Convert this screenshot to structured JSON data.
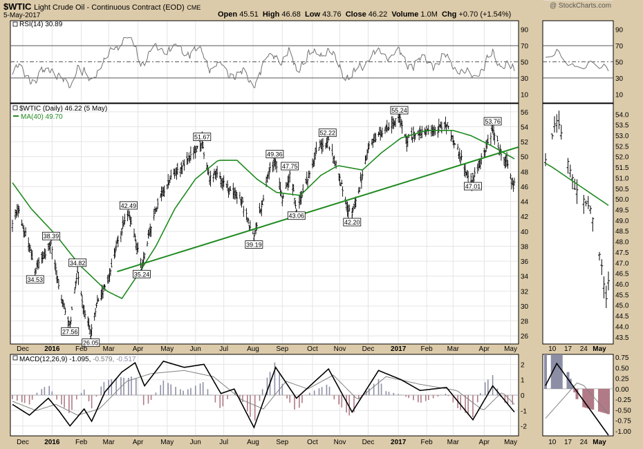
{
  "header": {
    "symbol": "$WTIC",
    "name": "Light Crude Oil - Continuous Contract (EOD)",
    "exchange": "CME",
    "date": "5-May-2017",
    "watermark": "@ StockCharts.com",
    "open_label": "Open",
    "open": "45.51",
    "high_label": "High",
    "high": "46.68",
    "low_label": "Low",
    "low": "43.76",
    "close_label": "Close",
    "close": "46.22",
    "volume_label": "Volume",
    "volume": "1.0M",
    "chg_label": "Chg",
    "chg": "+0.70 (+1.54%)"
  },
  "legends": {
    "rsi": "RSI(14) 30.89",
    "price": "$WTIC (Daily) 46.22 (5 May)",
    "ma": "MA(40) 49.70",
    "macd_a": "MACD(12,26,9) -1.095,",
    "macd_b": "-0.579,",
    "macd_c": "-0.517"
  },
  "colors": {
    "background": "#dccbaa",
    "panel": "#ffffff",
    "price_bars": "#000000",
    "ma_line": "#1f8a1f",
    "trendline": "#1f8a1f",
    "rsi_line": "#707070",
    "macd_line": "#000000",
    "signal_line": "#808080",
    "hist_pos": "#8c8ea6",
    "hist_neg": "#b07a86"
  },
  "chart_data": [
    {
      "type": "line",
      "panel": "rsi",
      "ylim": [
        0,
        100
      ],
      "yticks": [
        10,
        30,
        50,
        70,
        90
      ],
      "reference_lines": [
        30,
        50,
        70
      ],
      "current": 30.89,
      "x": [
        "Dec 2015",
        "Jan 2016",
        "Feb 2016",
        "Mar 2016",
        "Apr 2016",
        "May 2016",
        "Jun 2016",
        "Jul 2016",
        "Aug 2016",
        "Sep 2016",
        "Oct 2016",
        "Nov 2016",
        "Dec 2016",
        "Jan 2017",
        "Feb 2017",
        "Mar 2017",
        "Apr 2017",
        "May 2017"
      ],
      "series": [
        {
          "values": [
            45,
            40,
            35,
            48,
            52,
            60,
            65,
            50,
            35,
            55,
            60,
            42,
            62,
            58,
            55,
            40,
            62,
            31
          ]
        }
      ]
    },
    {
      "type": "line",
      "panel": "price",
      "title": "$WTIC (Daily) 46.22 (5 May)",
      "ylim": [
        25,
        57
      ],
      "yticks": [
        26,
        28,
        30,
        32,
        34,
        36,
        38,
        40,
        42,
        44,
        46,
        48,
        50,
        52,
        54,
        56
      ],
      "xticks": [
        "Dec",
        "2016",
        "Feb",
        "Mar",
        "Apr",
        "May",
        "Jun",
        "Jul",
        "Aug",
        "Sep",
        "Oct",
        "Nov",
        "Dec",
        "2017",
        "Feb",
        "Mar",
        "Apr",
        "May"
      ],
      "series": [
        {
          "name": "$WTIC",
          "kind": "ohlc_bars",
          "anchors": [
            [
              "2015-11-20",
              41.5
            ],
            [
              "2015-11-26",
              42.8
            ],
            [
              "2015-12-04",
              39.5
            ],
            [
              "2015-12-10",
              37.0
            ],
            [
              "2015-12-14",
              34.53
            ],
            [
              "2015-12-22",
              36.5
            ],
            [
              "2015-12-31",
              38.39
            ],
            [
              "2016-01-06",
              34.0
            ],
            [
              "2016-01-12",
              30.5
            ],
            [
              "2016-01-20",
              27.56
            ],
            [
              "2016-01-28",
              34.82
            ],
            [
              "2016-02-03",
              30.0
            ],
            [
              "2016-02-11",
              26.05
            ],
            [
              "2016-02-18",
              30.5
            ],
            [
              "2016-02-29",
              33.5
            ],
            [
              "2016-03-09",
              38.0
            ],
            [
              "2016-03-22",
              42.49
            ],
            [
              "2016-04-05",
              35.24
            ],
            [
              "2016-04-18",
              42.0
            ],
            [
              "2016-04-28",
              45.5
            ],
            [
              "2016-05-12",
              48.0
            ],
            [
              "2016-05-26",
              49.8
            ],
            [
              "2016-06-08",
              51.67
            ],
            [
              "2016-06-16",
              47.0
            ],
            [
              "2016-06-24",
              47.8
            ],
            [
              "2016-07-05",
              46.0
            ],
            [
              "2016-07-20",
              44.0
            ],
            [
              "2016-08-02",
              39.19
            ],
            [
              "2016-08-12",
              44.5
            ],
            [
              "2016-08-19",
              48.5
            ],
            [
              "2016-08-24",
              49.36
            ],
            [
              "2016-09-01",
              44.5
            ],
            [
              "2016-09-09",
              47.75
            ],
            [
              "2016-09-16",
              43.06
            ],
            [
              "2016-09-28",
              47.0
            ],
            [
              "2016-10-10",
              51.5
            ],
            [
              "2016-10-19",
              52.22
            ],
            [
              "2016-10-28",
              49.0
            ],
            [
              "2016-11-07",
              44.0
            ],
            [
              "2016-11-14",
              42.2
            ],
            [
              "2016-11-24",
              47.0
            ],
            [
              "2016-12-02",
              51.8
            ],
            [
              "2016-12-12",
              53.0
            ],
            [
              "2016-12-20",
              53.8
            ],
            [
              "2017-01-03",
              55.24
            ],
            [
              "2017-01-10",
              52.2
            ],
            [
              "2017-01-24",
              53.2
            ],
            [
              "2017-02-10",
              53.5
            ],
            [
              "2017-02-22",
              54.5
            ],
            [
              "2017-03-09",
              50.0
            ],
            [
              "2017-03-15",
              48.0
            ],
            [
              "2017-03-22",
              47.01
            ],
            [
              "2017-04-03",
              50.5
            ],
            [
              "2017-04-12",
              53.76
            ],
            [
              "2017-04-20",
              50.5
            ],
            [
              "2017-04-28",
              49.2
            ],
            [
              "2017-05-04",
              45.5
            ],
            [
              "2017-05-05",
              46.22
            ]
          ]
        },
        {
          "name": "MA(40)",
          "kind": "line",
          "anchors": [
            [
              "2015-11-20",
              46.5
            ],
            [
              "2015-12-10",
              43.0
            ],
            [
              "2016-01-05",
              39.5
            ],
            [
              "2016-01-30",
              35.5
            ],
            [
              "2016-02-28",
              32.0
            ],
            [
              "2016-03-15",
              31.0
            ],
            [
              "2016-03-31",
              34.0
            ],
            [
              "2016-04-20",
              38.0
            ],
            [
              "2016-05-10",
              43.0
            ],
            [
              "2016-06-01",
              47.0
            ],
            [
              "2016-06-25",
              49.5
            ],
            [
              "2016-07-15",
              49.5
            ],
            [
              "2016-08-05",
              47.0
            ],
            [
              "2016-08-26",
              45.2
            ],
            [
              "2016-09-20",
              44.8
            ],
            [
              "2016-10-12",
              47.5
            ],
            [
              "2016-10-30",
              48.8
            ],
            [
              "2016-11-25",
              48.2
            ],
            [
              "2016-12-15",
              50.5
            ],
            [
              "2017-01-05",
              52.5
            ],
            [
              "2017-02-01",
              53.5
            ],
            [
              "2017-03-01",
              53.5
            ],
            [
              "2017-03-20",
              52.8
            ],
            [
              "2017-04-10",
              51.5
            ],
            [
              "2017-05-05",
              49.7
            ]
          ]
        },
        {
          "name": "trendline",
          "kind": "line",
          "anchors": [
            [
              "2016-03-10",
              34.6
            ],
            [
              "2017-05-15",
              51.5
            ]
          ]
        }
      ],
      "annotations": [
        {
          "date": "2015-12-14",
          "value": "34.53",
          "position": "below"
        },
        {
          "date": "2015-12-31",
          "value": "38.39",
          "position": "above"
        },
        {
          "date": "2016-01-20",
          "value": "27.56",
          "position": "below"
        },
        {
          "date": "2016-01-28",
          "value": "34.82",
          "position": "above"
        },
        {
          "date": "2016-02-11",
          "value": "26.05",
          "position": "below"
        },
        {
          "date": "2016-03-22",
          "value": "42.49",
          "position": "above"
        },
        {
          "date": "2016-04-05",
          "value": "35.24",
          "position": "below"
        },
        {
          "date": "2016-06-08",
          "value": "51.67",
          "position": "above"
        },
        {
          "date": "2016-08-02",
          "value": "39.19",
          "position": "below"
        },
        {
          "date": "2016-08-24",
          "value": "49.36",
          "position": "above"
        },
        {
          "date": "2016-09-09",
          "value": "47.75",
          "position": "above"
        },
        {
          "date": "2016-09-16",
          "value": "43.06",
          "position": "below"
        },
        {
          "date": "2016-10-19",
          "value": "52.22",
          "position": "above"
        },
        {
          "date": "2016-11-14",
          "value": "42.20",
          "position": "below"
        },
        {
          "date": "2017-01-03",
          "value": "55.24",
          "position": "above"
        },
        {
          "date": "2017-03-22",
          "value": "47.01",
          "position": "below"
        },
        {
          "date": "2017-04-12",
          "value": "53.76",
          "position": "above"
        }
      ]
    },
    {
      "type": "line",
      "panel": "macd",
      "ylim": [
        -2.6,
        2.6
      ],
      "yticks": [
        -2,
        -1,
        0,
        1,
        2
      ],
      "current": {
        "macd": -1.095,
        "signal": -0.579,
        "histogram": -0.517
      },
      "series": [
        {
          "name": "MACD",
          "kind": "line",
          "anchors": [
            [
              "2015-11-20",
              -0.6
            ],
            [
              "2015-12-08",
              -1.3
            ],
            [
              "2015-12-28",
              -0.2
            ],
            [
              "2016-01-08",
              -1.0
            ],
            [
              "2016-01-20",
              -2.0
            ],
            [
              "2016-02-04",
              -0.9
            ],
            [
              "2016-02-12",
              -1.7
            ],
            [
              "2016-02-26",
              0.2
            ],
            [
              "2016-03-15",
              1.5
            ],
            [
              "2016-03-29",
              2.1
            ],
            [
              "2016-04-08",
              0.6
            ],
            [
              "2016-04-28",
              2.2
            ],
            [
              "2016-05-20",
              1.8
            ],
            [
              "2016-06-10",
              2.0
            ],
            [
              "2016-06-28",
              0.1
            ],
            [
              "2016-07-12",
              0.4
            ],
            [
              "2016-08-02",
              -2.1
            ],
            [
              "2016-08-25",
              1.8
            ],
            [
              "2016-09-16",
              -0.2
            ],
            [
              "2016-10-20",
              1.7
            ],
            [
              "2016-11-14",
              -1.1
            ],
            [
              "2016-12-12",
              1.6
            ],
            [
              "2017-01-05",
              1.0
            ],
            [
              "2017-01-25",
              0.3
            ],
            [
              "2017-02-22",
              0.5
            ],
            [
              "2017-03-22",
              -1.6
            ],
            [
              "2017-04-12",
              0.6
            ],
            [
              "2017-05-05",
              -1.1
            ]
          ]
        },
        {
          "name": "Signal",
          "kind": "line",
          "anchors": [
            [
              "2015-11-20",
              -0.4
            ],
            [
              "2015-12-15",
              -1.0
            ],
            [
              "2016-01-05",
              -0.6
            ],
            [
              "2016-01-28",
              -1.3
            ],
            [
              "2016-02-20",
              -0.9
            ],
            [
              "2016-03-20",
              0.9
            ],
            [
              "2016-04-15",
              1.4
            ],
            [
              "2016-05-20",
              1.6
            ],
            [
              "2016-06-20",
              1.2
            ],
            [
              "2016-07-20",
              -0.3
            ],
            [
              "2016-08-12",
              -0.9
            ],
            [
              "2016-09-05",
              0.9
            ],
            [
              "2016-09-28",
              0.4
            ],
            [
              "2016-10-25",
              1.3
            ],
            [
              "2016-11-20",
              -0.3
            ],
            [
              "2016-12-20",
              1.2
            ],
            [
              "2017-01-25",
              0.7
            ],
            [
              "2017-03-05",
              0.3
            ],
            [
              "2017-04-02",
              -1.0
            ],
            [
              "2017-04-22",
              0.2
            ],
            [
              "2017-05-05",
              -0.6
            ]
          ]
        }
      ]
    }
  ]
}
